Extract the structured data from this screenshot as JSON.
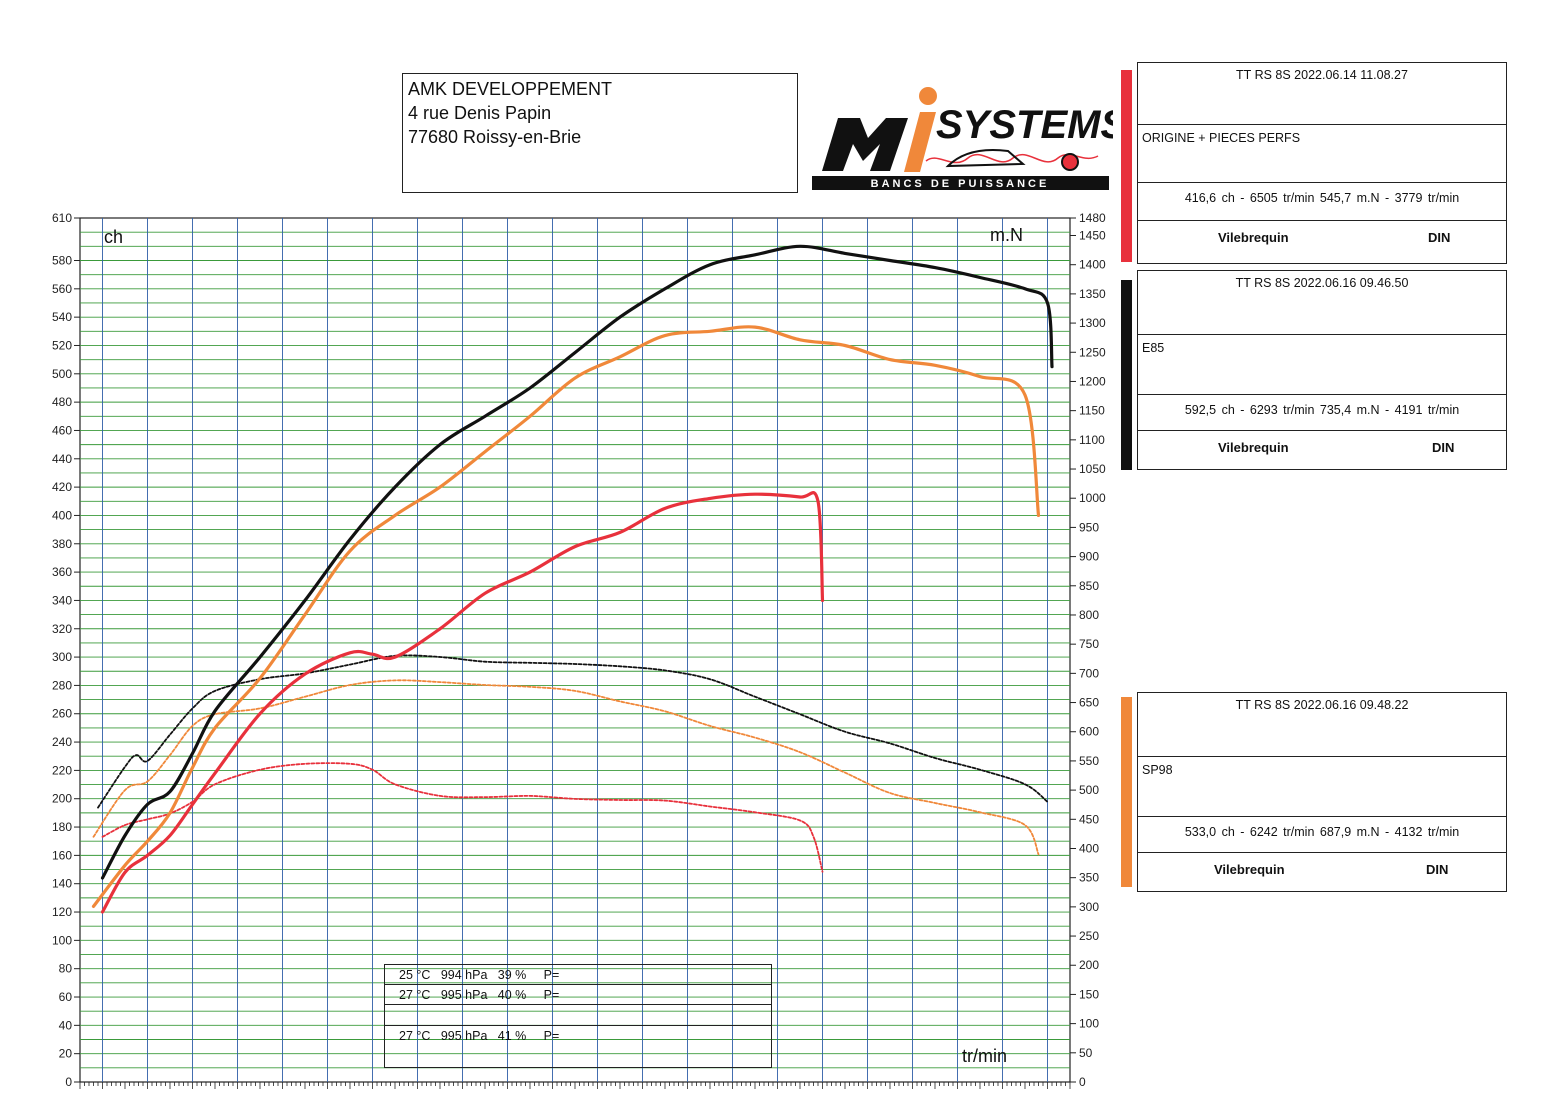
{
  "header": {
    "company_lines": [
      "AMK DEVELOPPEMENT",
      "4 rue Denis Papin",
      "77680 Roissy-en-Brie"
    ],
    "logo_text": "SYSTEMS",
    "logo_subtext": "BANCS DE PUISSANCE"
  },
  "runs": [
    {
      "title": "TT RS 8S    2022.06.14 11.08.27",
      "description": "ORIGINE + PIECES PERFS",
      "result": "416,6 ch - 6505 tr/min      545,7 m.N - 3779 tr/min",
      "foot_left": "Vilebrequin",
      "foot_right": "DIN",
      "color": "#e8313c"
    },
    {
      "title": "TT RS 8S   2022.06.16 09.46.50",
      "description": "E85",
      "result": "592,5 ch - 6293 tr/min      735,4 m.N - 4191 tr/min",
      "foot_left": "Vilebrequin",
      "foot_right": "DIN",
      "color": "#111111"
    },
    {
      "title": "TT RS 8S   2022.06.16 09.48.22",
      "description": "SP98",
      "result": "533,0 ch - 6242 tr/min      687,9 m.N - 4132 tr/min",
      "foot_left": "Vilebrequin",
      "foot_right": "DIN",
      "color": "#f0883a"
    }
  ],
  "conditions": [
    "25 °C   994 hPa   39 %     P=",
    "27 °C   995 hPa   40 %     P=",
    "",
    "27 °C   995 hPa   41 %     P="
  ],
  "chart_data": {
    "type": "line",
    "left_axis_label": "ch",
    "right_axis_label": "m.N",
    "x_axis_label": "tr/min",
    "left_ticks": [
      0,
      20,
      40,
      60,
      80,
      100,
      120,
      140,
      160,
      180,
      200,
      220,
      240,
      260,
      280,
      300,
      320,
      340,
      360,
      380,
      400,
      420,
      440,
      460,
      480,
      500,
      520,
      540,
      560,
      580,
      610
    ],
    "right_ticks": [
      0,
      50,
      100,
      150,
      200,
      250,
      300,
      350,
      400,
      450,
      500,
      550,
      600,
      650,
      700,
      750,
      800,
      850,
      900,
      950,
      1000,
      1050,
      1100,
      1150,
      1200,
      1250,
      1300,
      1350,
      1400,
      1450,
      1480
    ],
    "ylim_left": [
      0,
      610
    ],
    "ylim_right": [
      0,
      1480
    ],
    "grid": true,
    "series": [
      {
        "description": "E85",
        "kind": "power",
        "axis": "left",
        "color": "#111111",
        "style": "solid",
        "points": [
          [
            1,
            144
          ],
          [
            2,
            174
          ],
          [
            3,
            196
          ],
          [
            4,
            205
          ],
          [
            5,
            232
          ],
          [
            6,
            262
          ],
          [
            8,
            300
          ],
          [
            10,
            340
          ],
          [
            12,
            383
          ],
          [
            14,
            420
          ],
          [
            16,
            450
          ],
          [
            18,
            470
          ],
          [
            20,
            490
          ],
          [
            22,
            515
          ],
          [
            24,
            540
          ],
          [
            26,
            560
          ],
          [
            28,
            577
          ],
          [
            30,
            584
          ],
          [
            32,
            590
          ],
          [
            34,
            585
          ],
          [
            36,
            580
          ],
          [
            38,
            575
          ],
          [
            40,
            568
          ],
          [
            42,
            560
          ],
          [
            43,
            550
          ],
          [
            43.2,
            505
          ]
        ]
      },
      {
        "description": "SP98",
        "kind": "power",
        "axis": "left",
        "color": "#f0883a",
        "style": "solid",
        "points": [
          [
            0.6,
            124
          ],
          [
            2,
            153
          ],
          [
            3,
            170
          ],
          [
            4,
            190
          ],
          [
            5,
            222
          ],
          [
            6,
            250
          ],
          [
            8,
            285
          ],
          [
            10,
            330
          ],
          [
            12,
            375
          ],
          [
            14,
            400
          ],
          [
            16,
            420
          ],
          [
            18,
            445
          ],
          [
            20,
            470
          ],
          [
            22,
            497
          ],
          [
            24,
            512
          ],
          [
            26,
            527
          ],
          [
            28,
            530
          ],
          [
            30,
            533
          ],
          [
            32,
            524
          ],
          [
            34,
            520
          ],
          [
            36,
            510
          ],
          [
            38,
            506
          ],
          [
            40,
            498
          ],
          [
            42,
            485
          ],
          [
            42.6,
            400
          ]
        ]
      },
      {
        "description": "ORIGINE + PIECES PERFS",
        "kind": "power",
        "axis": "left",
        "color": "#e8313c",
        "style": "solid",
        "points": [
          [
            1,
            120
          ],
          [
            2,
            148
          ],
          [
            3,
            160
          ],
          [
            4,
            174
          ],
          [
            5,
            196
          ],
          [
            6,
            218
          ],
          [
            8,
            260
          ],
          [
            10,
            288
          ],
          [
            12,
            303
          ],
          [
            13,
            302
          ],
          [
            14,
            300
          ],
          [
            16,
            320
          ],
          [
            18,
            345
          ],
          [
            20,
            360
          ],
          [
            22,
            378
          ],
          [
            24,
            388
          ],
          [
            26,
            405
          ],
          [
            28,
            412
          ],
          [
            30,
            415
          ],
          [
            32,
            413
          ],
          [
            32.8,
            410
          ],
          [
            33,
            340
          ]
        ]
      },
      {
        "description": "E85",
        "kind": "torque",
        "axis": "right",
        "color": "#111111",
        "style": "dashed",
        "points": [
          [
            0.8,
            470
          ],
          [
            2,
            540
          ],
          [
            2.5,
            560
          ],
          [
            3,
            550
          ],
          [
            4,
            595
          ],
          [
            5,
            640
          ],
          [
            6,
            670
          ],
          [
            8,
            690
          ],
          [
            10,
            700
          ],
          [
            12,
            715
          ],
          [
            14,
            730
          ],
          [
            16,
            728
          ],
          [
            18,
            720
          ],
          [
            20,
            718
          ],
          [
            22,
            716
          ],
          [
            24,
            712
          ],
          [
            26,
            705
          ],
          [
            28,
            690
          ],
          [
            30,
            660
          ],
          [
            32,
            630
          ],
          [
            34,
            600
          ],
          [
            36,
            580
          ],
          [
            38,
            555
          ],
          [
            40,
            535
          ],
          [
            42,
            510
          ],
          [
            43,
            480
          ]
        ]
      },
      {
        "description": "SP98",
        "kind": "torque",
        "axis": "right",
        "color": "#f0883a",
        "style": "dashed",
        "points": [
          [
            0.6,
            420
          ],
          [
            2,
            500
          ],
          [
            3,
            515
          ],
          [
            4,
            560
          ],
          [
            5,
            610
          ],
          [
            6,
            630
          ],
          [
            8,
            640
          ],
          [
            10,
            660
          ],
          [
            12,
            680
          ],
          [
            14,
            688
          ],
          [
            16,
            685
          ],
          [
            18,
            680
          ],
          [
            20,
            677
          ],
          [
            22,
            670
          ],
          [
            24,
            652
          ],
          [
            26,
            635
          ],
          [
            28,
            610
          ],
          [
            30,
            590
          ],
          [
            32,
            565
          ],
          [
            34,
            530
          ],
          [
            36,
            495
          ],
          [
            38,
            478
          ],
          [
            40,
            462
          ],
          [
            42,
            440
          ],
          [
            42.6,
            390
          ]
        ]
      },
      {
        "description": "ORIGINE + PIECES PERFS",
        "kind": "torque",
        "axis": "right",
        "color": "#e8313c",
        "style": "dashed",
        "points": [
          [
            1,
            420
          ],
          [
            2,
            440
          ],
          [
            3,
            450
          ],
          [
            4,
            460
          ],
          [
            5,
            480
          ],
          [
            6,
            510
          ],
          [
            8,
            535
          ],
          [
            10,
            545
          ],
          [
            12,
            545
          ],
          [
            13,
            535
          ],
          [
            14,
            510
          ],
          [
            16,
            490
          ],
          [
            18,
            488
          ],
          [
            20,
            490
          ],
          [
            22,
            485
          ],
          [
            24,
            483
          ],
          [
            26,
            482
          ],
          [
            28,
            472
          ],
          [
            30,
            462
          ],
          [
            32,
            448
          ],
          [
            32.6,
            420
          ],
          [
            33,
            360
          ]
        ]
      }
    ]
  }
}
